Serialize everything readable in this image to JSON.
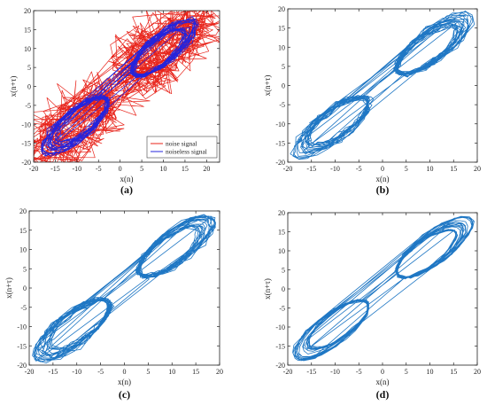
{
  "chart_data": [
    {
      "panel_label": "(a)",
      "type": "line",
      "xlabel": "x(n)",
      "ylabel": "x(n+τ)",
      "xlim": [
        -20,
        23
      ],
      "ylim": [
        -20,
        20
      ],
      "xticks": [
        -20,
        -15,
        -10,
        -5,
        0,
        5,
        10,
        15,
        20
      ],
      "yticks": [
        -20,
        -15,
        -10,
        -5,
        0,
        5,
        10,
        15,
        20
      ],
      "legend_position": "bottom-right",
      "series": [
        {
          "name": "noise signal",
          "color": "#e8231a",
          "x": [
            -16,
            -12,
            -8,
            -4,
            0,
            4,
            8,
            12,
            16,
            20,
            22
          ],
          "y": [
            -18,
            -15,
            -10,
            -6,
            -1,
            3,
            8,
            12,
            15,
            18,
            19
          ]
        },
        {
          "name": "noiseless signal",
          "color": "#2424dc",
          "x": [
            -15,
            -10,
            -5,
            0,
            5,
            10,
            15
          ],
          "y": [
            -14,
            -10,
            -5,
            0,
            5,
            10,
            14
          ]
        }
      ]
    },
    {
      "panel_label": "(b)",
      "type": "line",
      "xlabel": "x(n)",
      "ylabel": "x(n+τ)",
      "xlim": [
        -20,
        20
      ],
      "ylim": [
        -20,
        20
      ],
      "xticks": [
        -20,
        -15,
        -10,
        -5,
        0,
        5,
        10,
        15,
        20
      ],
      "yticks": [
        -20,
        -15,
        -10,
        -5,
        0,
        5,
        10,
        15,
        20
      ],
      "series": [
        {
          "color": "#1f77c4",
          "x": [
            -17,
            -12,
            -6,
            0,
            6,
            12,
            18
          ],
          "y": [
            -16,
            -12,
            -6,
            0,
            6,
            12,
            18
          ]
        }
      ]
    },
    {
      "panel_label": "(c)",
      "type": "line",
      "xlabel": "x(n)",
      "ylabel": "x(n+τ)",
      "xlim": [
        -20,
        20
      ],
      "ylim": [
        -20,
        20
      ],
      "xticks": [
        -20,
        -15,
        -10,
        -5,
        0,
        5,
        10,
        15,
        20
      ],
      "yticks": [
        -20,
        -15,
        -10,
        -5,
        0,
        5,
        10,
        15,
        20
      ],
      "series": [
        {
          "color": "#1f77c4",
          "x": [
            -17,
            -12,
            -6,
            0,
            6,
            12,
            18
          ],
          "y": [
            -16,
            -12,
            -6,
            0,
            6,
            12,
            18
          ]
        }
      ]
    },
    {
      "panel_label": "(d)",
      "type": "line",
      "xlabel": "x(n)",
      "ylabel": "x(n+τ)",
      "xlim": [
        -20,
        20
      ],
      "ylim": [
        -20,
        20
      ],
      "xticks": [
        -20,
        -15,
        -10,
        -5,
        0,
        5,
        10,
        15,
        20
      ],
      "yticks": [
        -20,
        -15,
        -10,
        -5,
        0,
        5,
        10,
        15,
        20
      ],
      "series": [
        {
          "color": "#1f77c4",
          "x": [
            -16,
            -12,
            -6,
            0,
            6,
            12,
            18
          ],
          "y": [
            -16,
            -12,
            -6,
            0,
            6,
            12,
            17
          ]
        }
      ]
    }
  ]
}
